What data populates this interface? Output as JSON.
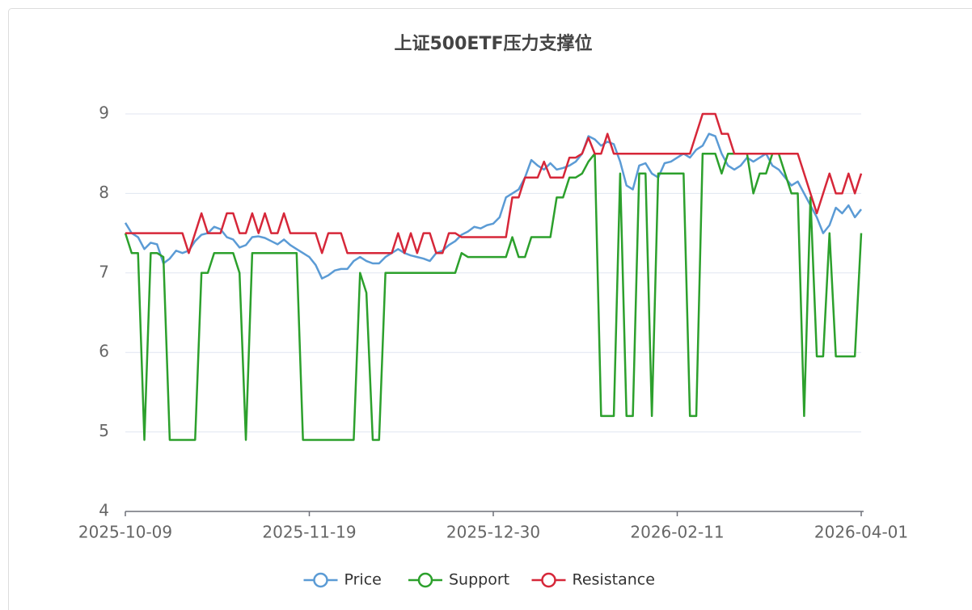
{
  "chart_data": {
    "type": "line",
    "title": "上证500ETF压力支撑位",
    "categories": [
      "2025-10-09",
      null,
      null,
      null,
      null,
      null,
      null,
      null,
      null,
      null,
      null,
      null,
      null,
      null,
      null,
      null,
      null,
      null,
      null,
      null,
      null,
      null,
      null,
      null,
      null,
      null,
      null,
      null,
      null,
      "2025-11-19",
      null,
      null,
      null,
      null,
      null,
      null,
      null,
      null,
      null,
      null,
      null,
      null,
      null,
      null,
      null,
      null,
      null,
      null,
      null,
      null,
      null,
      null,
      null,
      null,
      null,
      null,
      null,
      null,
      "2025-12-30",
      null,
      null,
      null,
      null,
      null,
      null,
      null,
      null,
      null,
      null,
      null,
      null,
      null,
      null,
      null,
      null,
      null,
      null,
      null,
      null,
      null,
      null,
      null,
      null,
      null,
      null,
      null,
      null,
      "2026-02-11",
      null,
      null,
      null,
      null,
      null,
      null,
      null,
      null,
      null,
      null,
      null,
      null,
      null,
      null,
      null,
      null,
      null,
      null,
      null,
      null,
      null,
      null,
      null,
      null,
      null,
      null,
      null,
      null,
      "2026-04-01"
    ],
    "series": [
      {
        "name": "Price",
        "color": "#5b9bd5",
        "values": [
          7.63,
          7.5,
          7.45,
          7.3,
          7.38,
          7.36,
          7.12,
          7.18,
          7.28,
          7.25,
          7.28,
          7.4,
          7.48,
          7.5,
          7.58,
          7.55,
          7.45,
          7.42,
          7.32,
          7.35,
          7.45,
          7.46,
          7.44,
          7.4,
          7.36,
          7.42,
          7.35,
          7.3,
          7.25,
          7.2,
          7.1,
          6.93,
          6.97,
          7.03,
          7.05,
          7.05,
          7.15,
          7.2,
          7.15,
          7.12,
          7.12,
          7.2,
          7.25,
          7.3,
          7.25,
          7.22,
          7.2,
          7.18,
          7.15,
          7.25,
          7.28,
          7.35,
          7.4,
          7.48,
          7.52,
          7.58,
          7.56,
          7.6,
          7.62,
          7.7,
          7.95,
          8.0,
          8.05,
          8.2,
          8.42,
          8.35,
          8.3,
          8.38,
          8.3,
          8.32,
          8.35,
          8.4,
          8.5,
          8.72,
          8.68,
          8.6,
          8.65,
          8.62,
          8.4,
          8.1,
          8.05,
          8.35,
          8.38,
          8.25,
          8.2,
          8.38,
          8.4,
          8.45,
          8.5,
          8.45,
          8.55,
          8.6,
          8.75,
          8.72,
          8.5,
          8.35,
          8.3,
          8.35,
          8.45,
          8.4,
          8.45,
          8.5,
          8.35,
          8.3,
          8.2,
          8.1,
          8.15,
          8.0,
          7.85,
          7.7,
          7.5,
          7.6,
          7.82,
          7.75,
          7.85,
          7.7,
          7.8
        ]
      },
      {
        "name": "Support",
        "color": "#2ca02c",
        "values": [
          7.5,
          7.25,
          7.25,
          4.9,
          7.25,
          7.25,
          7.2,
          4.9,
          4.9,
          4.9,
          4.9,
          4.9,
          7.0,
          7.0,
          7.25,
          7.25,
          7.25,
          7.25,
          7.0,
          4.9,
          7.25,
          7.25,
          7.25,
          7.25,
          7.25,
          7.25,
          7.25,
          7.25,
          4.9,
          4.9,
          4.9,
          4.9,
          4.9,
          4.9,
          4.9,
          4.9,
          4.9,
          7.0,
          6.75,
          4.9,
          4.9,
          7.0,
          7.0,
          7.0,
          7.0,
          7.0,
          7.0,
          7.0,
          7.0,
          7.0,
          7.0,
          7.0,
          7.0,
          7.25,
          7.2,
          7.2,
          7.2,
          7.2,
          7.2,
          7.2,
          7.2,
          7.45,
          7.2,
          7.2,
          7.45,
          7.45,
          7.45,
          7.45,
          7.95,
          7.95,
          8.2,
          8.2,
          8.25,
          8.4,
          8.5,
          5.2,
          5.2,
          5.2,
          8.25,
          5.2,
          5.2,
          8.25,
          8.25,
          5.2,
          8.25,
          8.25,
          8.25,
          8.25,
          8.25,
          5.2,
          5.2,
          8.5,
          8.5,
          8.5,
          8.25,
          8.5,
          8.5,
          8.5,
          8.5,
          8.0,
          8.25,
          8.25,
          8.5,
          8.5,
          8.25,
          8.0,
          8.0,
          5.2,
          7.95,
          5.95,
          5.95,
          7.5,
          5.95,
          5.95,
          5.95,
          5.95,
          7.5
        ]
      },
      {
        "name": "Resistance",
        "color": "#d62739",
        "values": [
          7.5,
          7.5,
          7.5,
          7.5,
          7.5,
          7.5,
          7.5,
          7.5,
          7.5,
          7.5,
          7.25,
          7.5,
          7.75,
          7.5,
          7.5,
          7.5,
          7.75,
          7.75,
          7.5,
          7.5,
          7.75,
          7.5,
          7.75,
          7.5,
          7.5,
          7.75,
          7.5,
          7.5,
          7.5,
          7.5,
          7.5,
          7.25,
          7.5,
          7.5,
          7.5,
          7.25,
          7.25,
          7.25,
          7.25,
          7.25,
          7.25,
          7.25,
          7.25,
          7.5,
          7.25,
          7.5,
          7.25,
          7.5,
          7.5,
          7.25,
          7.25,
          7.5,
          7.5,
          7.45,
          7.45,
          7.45,
          7.45,
          7.45,
          7.45,
          7.45,
          7.45,
          7.95,
          7.95,
          8.2,
          8.2,
          8.2,
          8.4,
          8.2,
          8.2,
          8.2,
          8.45,
          8.45,
          8.5,
          8.7,
          8.5,
          8.5,
          8.75,
          8.5,
          8.5,
          8.5,
          8.5,
          8.5,
          8.5,
          8.5,
          8.5,
          8.5,
          8.5,
          8.5,
          8.5,
          8.5,
          8.75,
          9.0,
          9.0,
          9.0,
          8.75,
          8.75,
          8.5,
          8.5,
          8.5,
          8.5,
          8.5,
          8.5,
          8.5,
          8.5,
          8.5,
          8.5,
          8.5,
          8.25,
          8.0,
          7.75,
          8.0,
          8.25,
          8.0,
          8.0,
          8.25,
          8.0,
          8.25
        ]
      }
    ],
    "ylim": [
      4,
      9
    ],
    "yticks": [
      4,
      5,
      6,
      7,
      8,
      9
    ],
    "grid": true,
    "legend": "bottom"
  }
}
